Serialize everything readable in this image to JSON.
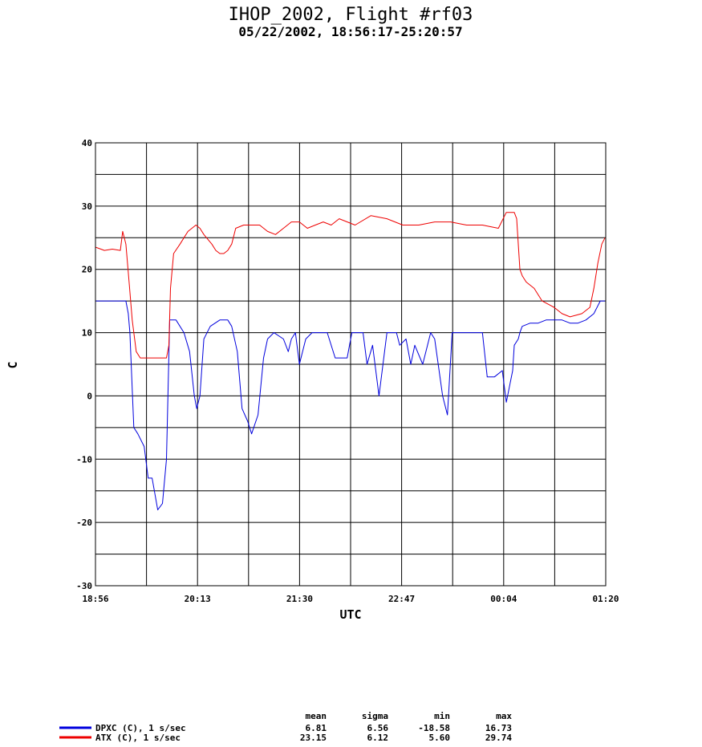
{
  "chart_data": {
    "type": "line",
    "title": "IHOP_2002, Flight #rf03",
    "subtitle": "05/22/2002, 18:56:17-25:20:57",
    "xlabel": "UTC",
    "ylabel": "C",
    "x_tick_labels": [
      "18:56",
      "20:13",
      "21:30",
      "22:47",
      "00:04",
      "01:20"
    ],
    "x_range_hours": [
      18.938,
      25.349
    ],
    "ylim": [
      -30,
      40
    ],
    "y_ticks": [
      -30,
      -20,
      -10,
      0,
      10,
      20,
      30,
      40
    ],
    "grid": true,
    "series": [
      {
        "name": "DPXC (C), 1 s/sec",
        "color": "#0000dd",
        "x": [
          18.94,
          19.1,
          19.32,
          19.35,
          19.37,
          19.42,
          19.47,
          19.55,
          19.6,
          19.65,
          19.72,
          19.78,
          19.83,
          19.87,
          19.95,
          20.05,
          20.12,
          20.18,
          20.21,
          20.25,
          20.3,
          20.38,
          20.5,
          20.6,
          20.65,
          20.72,
          20.78,
          20.85,
          20.9,
          20.98,
          21.05,
          21.1,
          21.18,
          21.3,
          21.36,
          21.4,
          21.45,
          21.5,
          21.58,
          21.66,
          21.72,
          21.78,
          21.85,
          21.95,
          22.1,
          22.16,
          22.22,
          22.3,
          22.35,
          22.42,
          22.5,
          22.6,
          22.72,
          22.76,
          22.84,
          22.9,
          22.95,
          23.05,
          23.15,
          23.2,
          23.3,
          23.36,
          23.42,
          23.5,
          23.6,
          23.65,
          23.72,
          23.8,
          23.86,
          23.95,
          24.05,
          24.1,
          24.18,
          24.2,
          24.25,
          24.27,
          24.3,
          24.4,
          24.5,
          24.6,
          24.7,
          24.8,
          24.9,
          25.0,
          25.1,
          25.2,
          25.28,
          25.34
        ],
        "values": [
          15,
          15,
          15,
          13,
          10,
          -5,
          -6,
          -8,
          -13,
          -13,
          -18,
          -17,
          -10,
          12,
          12,
          10,
          7,
          0,
          -2,
          0,
          9,
          11,
          12,
          12,
          11,
          7,
          -2,
          -4,
          -6,
          -3,
          6,
          9,
          10,
          9,
          7,
          9,
          10,
          5,
          9,
          10,
          10,
          10,
          10,
          6,
          6,
          10,
          10,
          10,
          5,
          8,
          0,
          10,
          10,
          8,
          9,
          5,
          8,
          5,
          10,
          9,
          0,
          -3,
          10,
          10,
          10,
          10,
          10,
          10,
          3,
          3,
          4,
          -1,
          4,
          8,
          9,
          10,
          11,
          11.5,
          11.5,
          12,
          12,
          12,
          11.5,
          11.5,
          12,
          13,
          15,
          15
        ]
      },
      {
        "name": "ATX (C), 1 s/sec",
        "color": "#ee0000",
        "x": [
          18.94,
          19.05,
          19.15,
          19.25,
          19.28,
          19.32,
          19.36,
          19.4,
          19.45,
          19.5,
          19.6,
          19.7,
          19.8,
          19.83,
          19.86,
          19.88,
          19.92,
          20.0,
          20.05,
          20.1,
          20.15,
          20.2,
          20.25,
          20.3,
          20.4,
          20.45,
          20.5,
          20.55,
          20.6,
          20.65,
          20.7,
          20.8,
          20.9,
          21.0,
          21.1,
          21.2,
          21.3,
          21.4,
          21.5,
          21.6,
          21.7,
          21.8,
          21.9,
          22.0,
          22.2,
          22.4,
          22.6,
          22.8,
          23.0,
          23.2,
          23.4,
          23.6,
          23.8,
          24.0,
          24.1,
          24.15,
          24.2,
          24.23,
          24.25,
          24.27,
          24.3,
          24.35,
          24.45,
          24.55,
          24.7,
          24.8,
          24.9,
          25.05,
          25.15,
          25.2,
          25.25,
          25.3,
          25.34
        ],
        "values": [
          23.5,
          23,
          23.2,
          23,
          26,
          24,
          18,
          12,
          7,
          6,
          6,
          6,
          6,
          6,
          8,
          17,
          22.5,
          24,
          25,
          26,
          26.5,
          27,
          26.5,
          25.5,
          24,
          23,
          22.5,
          22.5,
          23,
          24,
          26.5,
          27,
          27,
          27,
          26,
          25.5,
          26.5,
          27.5,
          27.5,
          26.5,
          27,
          27.5,
          27,
          28,
          27,
          28.5,
          28,
          27,
          27,
          27.5,
          27.5,
          27,
          27,
          26.5,
          29,
          29,
          29,
          28,
          24,
          20,
          19,
          18,
          17,
          15,
          14,
          13,
          12.5,
          13,
          14,
          17,
          21,
          24,
          25
        ]
      }
    ],
    "stats": {
      "headers": [
        "mean",
        "sigma",
        "min",
        "max"
      ],
      "rows": [
        {
          "label": "DPXC (C), 1 s/sec",
          "values": [
            "6.81",
            "6.56",
            "-18.58",
            "16.73"
          ]
        },
        {
          "label": "ATX (C), 1 s/sec",
          "values": [
            "23.15",
            "6.12",
            "5.60",
            "29.74"
          ]
        }
      ]
    }
  }
}
